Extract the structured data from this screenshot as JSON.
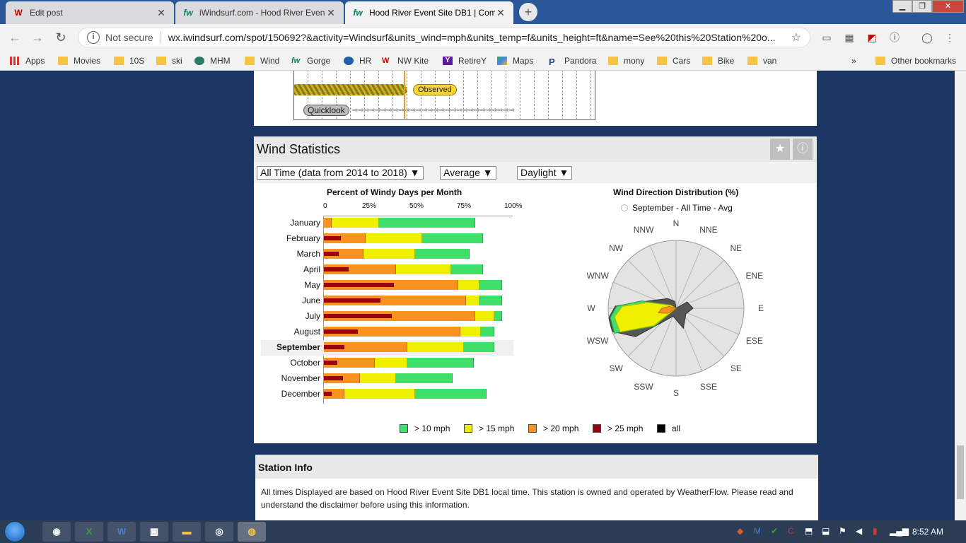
{
  "browser": {
    "tabs": [
      {
        "label": "Edit post",
        "favicon": "wix-w",
        "active": false
      },
      {
        "label": "iWindsurf.com - Hood River Even",
        "favicon": "iw",
        "active": false
      },
      {
        "label": "Hood River Event Site DB1 | Com",
        "favicon": "iw",
        "active": true
      }
    ],
    "address": {
      "security": "Not secure",
      "url": "wx.iwindsurf.com/spot/150692?&activity=Windsurf&units_wind=mph&units_temp=f&units_height=ft&name=See%20this%20Station%20o..."
    },
    "bookmarks": [
      {
        "label": "Apps",
        "icon": "apps-grid-icon"
      },
      {
        "label": "Movies",
        "icon": "folder-icon"
      },
      {
        "label": "10S",
        "icon": "folder-icon"
      },
      {
        "label": "ski",
        "icon": "folder-icon"
      },
      {
        "label": "MHM",
        "icon": "mountain-icon"
      },
      {
        "label": "Wind",
        "icon": "folder-icon"
      },
      {
        "label": "Gorge",
        "icon": "iw-icon"
      },
      {
        "label": "HR",
        "icon": "hr-icon"
      },
      {
        "label": "NW Kite",
        "icon": "wix-w"
      },
      {
        "label": "RetireY",
        "icon": "yahoo-icon"
      },
      {
        "label": "Maps",
        "icon": "maps-icon"
      },
      {
        "label": "Pandora",
        "icon": "pandora-icon"
      },
      {
        "label": "mony",
        "icon": "folder-icon"
      },
      {
        "label": "Cars",
        "icon": "folder-icon"
      },
      {
        "label": "Bike",
        "icon": "folder-icon"
      },
      {
        "label": "van",
        "icon": "folder-icon"
      },
      {
        "label": "Other bookmarks",
        "icon": "folder-icon"
      }
    ],
    "overflow": "»"
  },
  "quicklook": {
    "observed_label": "Observed",
    "quicklook_label": "Quicklook"
  },
  "wind_stats": {
    "title": "Wind Statistics",
    "filters": {
      "period": "All Time (data from 2014 to 2018)",
      "stat": "Average",
      "time": "Daylight"
    },
    "percent_chart": {
      "title": "Percent of Windy Days per Month",
      "ticks": [
        "0",
        "25%",
        "50%",
        "75%",
        "100%"
      ],
      "selected_month": "September"
    },
    "direction_chart": {
      "title": "Wind Direction Distribution (%)",
      "legend": "September - All Time - Avg",
      "compass": [
        "N",
        "NNE",
        "NE",
        "ENE",
        "E",
        "ESE",
        "SE",
        "SSE",
        "S",
        "SSW",
        "SW",
        "WSW",
        "W",
        "WNW",
        "NW",
        "NNW"
      ]
    },
    "legend": [
      {
        "label": "> 10 mph",
        "color": "#3fe06a"
      },
      {
        "label": "> 15 mph",
        "color": "#eef000"
      },
      {
        "label": "> 20 mph",
        "color": "#f7931e"
      },
      {
        "label": "> 25 mph",
        "color": "#9a0010"
      },
      {
        "label": "all",
        "color": "#000000"
      }
    ]
  },
  "chart_data": {
    "type": "bar",
    "title": "Percent of Windy Days per Month",
    "orientation": "horizontal-overlapping",
    "xlim": [
      0,
      100
    ],
    "categories": [
      "January",
      "February",
      "March",
      "April",
      "May",
      "June",
      "July",
      "August",
      "September",
      "October",
      "November",
      "December"
    ],
    "series": [
      {
        "name": "> 10 mph",
        "values": [
          80,
          84,
          77,
          84,
          94,
          94,
          94,
          90,
          90,
          79,
          68,
          86
        ]
      },
      {
        "name": "> 15 mph",
        "values": [
          29,
          52,
          48,
          67,
          82,
          82,
          90,
          83,
          74,
          44,
          38,
          48
        ]
      },
      {
        "name": "> 20 mph",
        "values": [
          4,
          22,
          21,
          38,
          71,
          75,
          80,
          72,
          44,
          27,
          19,
          11
        ]
      },
      {
        "name": "> 25 mph",
        "values": [
          0,
          9,
          8,
          13,
          37,
          30,
          36,
          18,
          11,
          7,
          10,
          4
        ]
      }
    ]
  },
  "station_info": {
    "title": "Station Info",
    "text": "All times Displayed are based on Hood River Event Site DB1 local time. This station is owned and operated by WeatherFlow. Please read and understand the disclaimer before using this information."
  },
  "taskbar": {
    "clock": "8:52 AM"
  }
}
